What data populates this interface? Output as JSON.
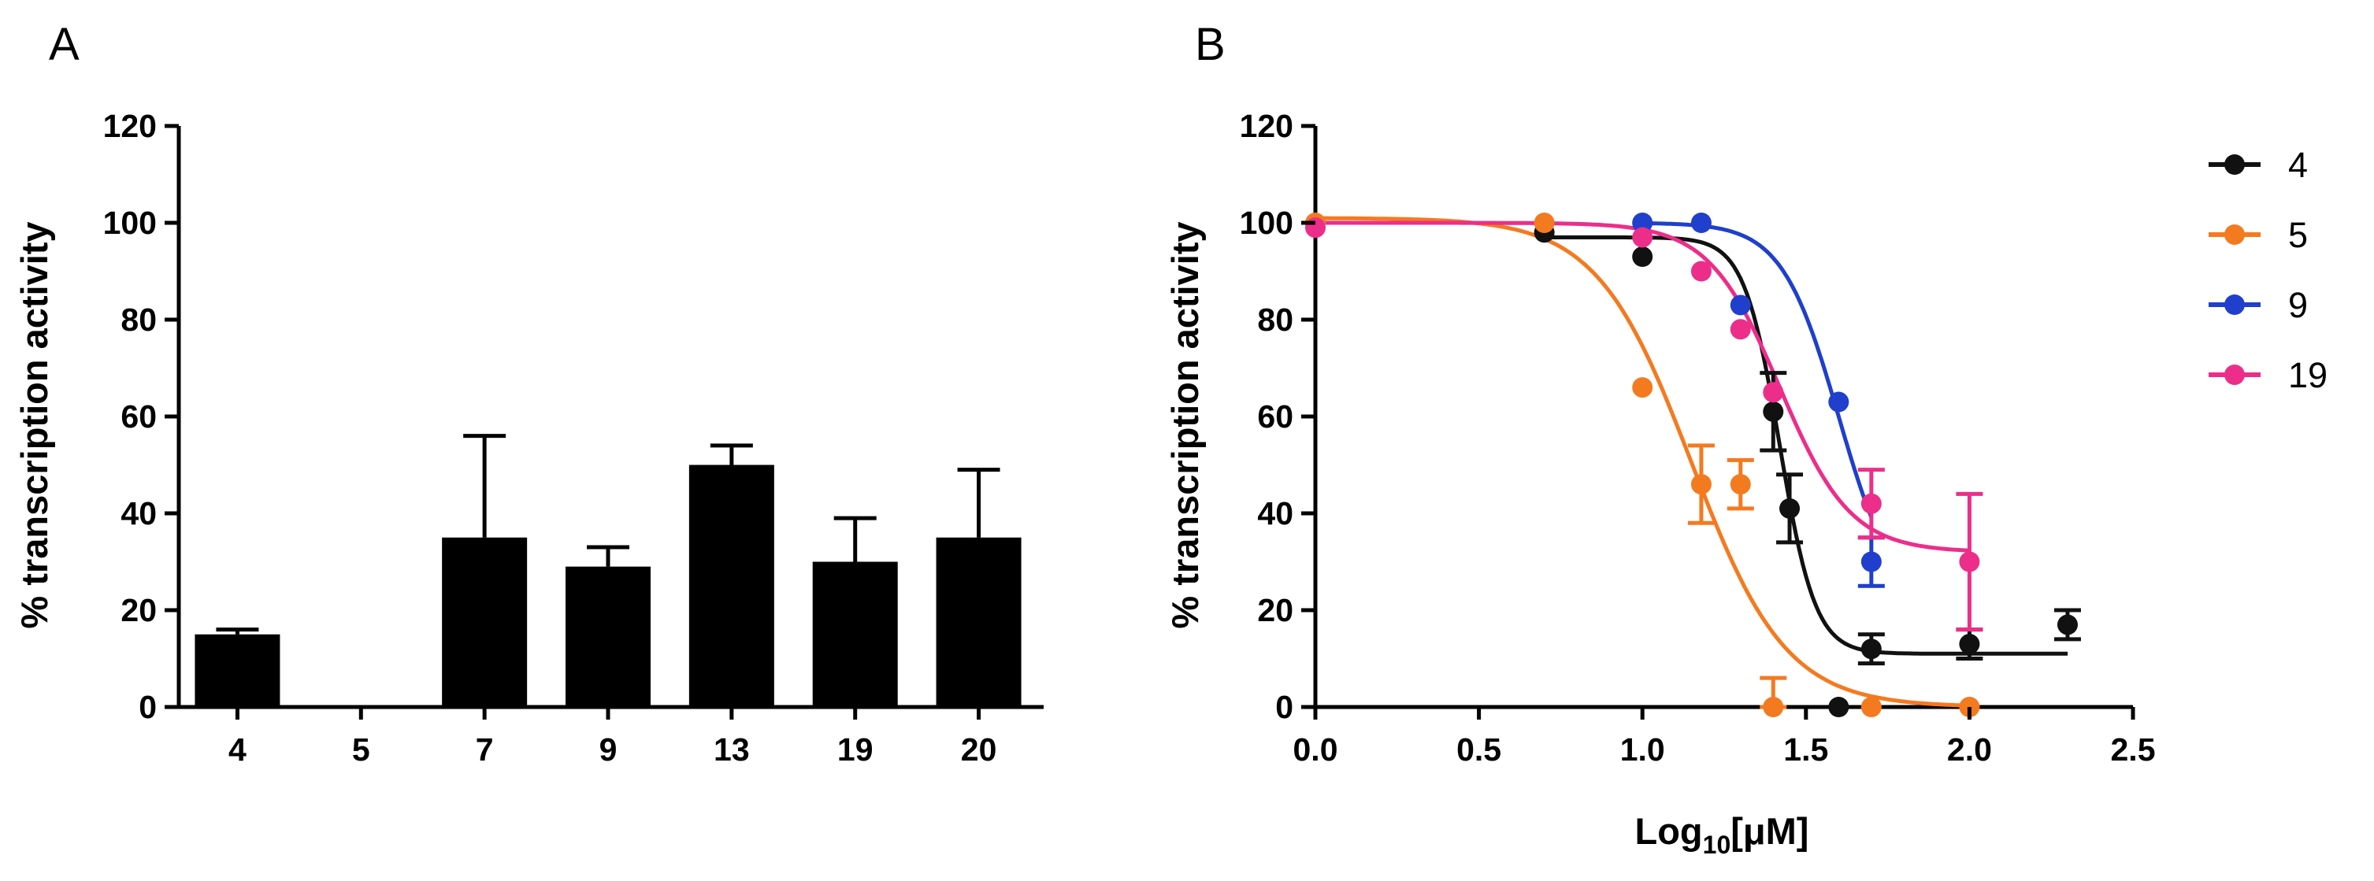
{
  "chart_data": [
    {
      "panel": "A",
      "type": "bar",
      "title": "",
      "xlabel": "",
      "ylabel": "% transcription activity",
      "ylim": [
        0,
        120
      ],
      "yticks": [
        "0",
        "20",
        "40",
        "60",
        "80",
        "100",
        "120"
      ],
      "categories": [
        "4",
        "5",
        "7",
        "9",
        "13",
        "19",
        "20"
      ],
      "values": [
        15,
        0,
        35,
        29,
        50,
        30,
        35
      ],
      "error_upper": [
        1,
        0,
        21,
        4,
        4,
        9,
        14
      ],
      "color": "#000000"
    },
    {
      "panel": "B",
      "type": "scatter",
      "title": "",
      "xlabel_prefix": "Log",
      "xlabel_sub": "10",
      "xlabel_suffix": "[μM]",
      "ylabel": "% transcription activity",
      "xlim": [
        0,
        2.5
      ],
      "ylim": [
        0,
        120
      ],
      "xticks": [
        "0.0",
        "0.5",
        "1.0",
        "1.5",
        "2.0",
        "2.5"
      ],
      "yticks": [
        "0",
        "20",
        "40",
        "60",
        "80",
        "100",
        "120"
      ],
      "legend_position": "right",
      "series": [
        {
          "name": "4",
          "color": "#111111",
          "points": [
            {
              "x": 0.7,
              "y": 98,
              "err": 0
            },
            {
              "x": 1.0,
              "y": 93,
              "err": 0
            },
            {
              "x": 1.4,
              "y": 61,
              "err": 8
            },
            {
              "x": 1.45,
              "y": 41,
              "err": 7
            },
            {
              "x": 1.6,
              "y": 0,
              "err": 0
            },
            {
              "x": 1.7,
              "y": 12,
              "err": 3
            },
            {
              "x": 2.0,
              "y": 13,
              "err": 3
            },
            {
              "x": 2.3,
              "y": 17,
              "err": 3
            }
          ],
          "fit": {
            "top": 97,
            "bottom": 11,
            "log_ic50": 1.42,
            "hill": 8
          }
        },
        {
          "name": "5",
          "color": "#f47a20",
          "points": [
            {
              "x": 0.0,
              "y": 100,
              "err": 0
            },
            {
              "x": 0.7,
              "y": 100,
              "err": 0
            },
            {
              "x": 1.0,
              "y": 66,
              "err": 0
            },
            {
              "x": 1.18,
              "y": 46,
              "err": 8
            },
            {
              "x": 1.3,
              "y": 46,
              "err": 5
            },
            {
              "x": 1.4,
              "y": 0,
              "err": 6
            },
            {
              "x": 1.7,
              "y": 0,
              "err": 0
            },
            {
              "x": 2.0,
              "y": 0,
              "err": 0
            }
          ],
          "fit": {
            "top": 101,
            "bottom": 0,
            "log_ic50": 1.15,
            "hill": 3
          }
        },
        {
          "name": "9",
          "color": "#1f3fcc",
          "points": [
            {
              "x": 1.0,
              "y": 100,
              "err": 0
            },
            {
              "x": 1.18,
              "y": 100,
              "err": 0
            },
            {
              "x": 1.3,
              "y": 83,
              "err": 0
            },
            {
              "x": 1.6,
              "y": 63,
              "err": 0
            },
            {
              "x": 1.7,
              "y": 30,
              "err": 5
            }
          ],
          "fit": {
            "top": 100,
            "bottom": 20,
            "log_ic50": 1.6,
            "hill": 5
          }
        },
        {
          "name": "19",
          "color": "#ec2e8a",
          "points": [
            {
              "x": 0.0,
              "y": 99,
              "err": 0
            },
            {
              "x": 1.0,
              "y": 97,
              "err": 0
            },
            {
              "x": 1.18,
              "y": 90,
              "err": 0
            },
            {
              "x": 1.3,
              "y": 78,
              "err": 0
            },
            {
              "x": 1.4,
              "y": 65,
              "err": 0
            },
            {
              "x": 1.7,
              "y": 42,
              "err": 7
            },
            {
              "x": 2.0,
              "y": 30,
              "err": 14
            }
          ],
          "fit": {
            "top": 100,
            "bottom": 32,
            "log_ic50": 1.42,
            "hill": 4
          }
        }
      ]
    }
  ]
}
